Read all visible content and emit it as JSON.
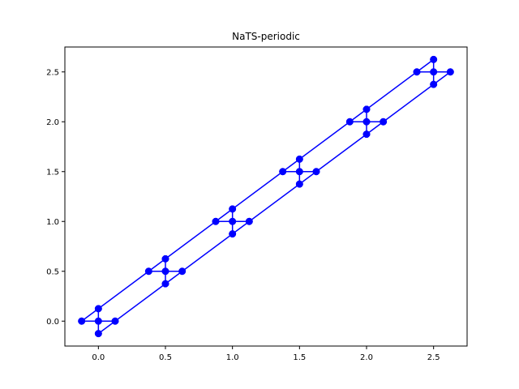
{
  "chart_data": {
    "type": "line",
    "title": "NaTS-periodic",
    "xlabel": "",
    "ylabel": "",
    "xlim": [
      -0.25,
      2.75
    ],
    "ylim": [
      -0.25,
      2.75
    ],
    "xticks": [
      0.0,
      0.5,
      1.0,
      1.5,
      2.0,
      2.5
    ],
    "yticks": [
      0.0,
      0.5,
      1.0,
      1.5,
      2.0,
      2.5
    ],
    "xtick_labels": [
      "0.0",
      "0.5",
      "1.0",
      "1.5",
      "2.0",
      "2.5"
    ],
    "ytick_labels": [
      "0.0",
      "0.5",
      "1.0",
      "1.5",
      "2.0",
      "2.5"
    ],
    "grid": false,
    "legend": "none",
    "color": "#0000ff",
    "series": [
      {
        "x": [
          -0.125,
          0.0,
          0.125
        ],
        "y": [
          0.0,
          0.0,
          0.0
        ]
      },
      {
        "x": [
          0.0,
          0.0,
          0.0
        ],
        "y": [
          -0.125,
          0.0,
          0.125
        ]
      },
      {
        "x": [
          0.375,
          0.5,
          0.625
        ],
        "y": [
          0.5,
          0.5,
          0.5
        ]
      },
      {
        "x": [
          0.5,
          0.5,
          0.5
        ],
        "y": [
          0.375,
          0.5,
          0.625
        ]
      },
      {
        "x": [
          0.875,
          1.0,
          1.125
        ],
        "y": [
          1.0,
          1.0,
          1.0
        ]
      },
      {
        "x": [
          1.0,
          1.0,
          1.0
        ],
        "y": [
          0.875,
          1.0,
          1.125
        ]
      },
      {
        "x": [
          1.375,
          1.5,
          1.625
        ],
        "y": [
          1.5,
          1.5,
          1.5
        ]
      },
      {
        "x": [
          1.5,
          1.5,
          1.5
        ],
        "y": [
          1.375,
          1.5,
          1.625
        ]
      },
      {
        "x": [
          1.875,
          2.0,
          2.125
        ],
        "y": [
          2.0,
          2.0,
          2.0
        ]
      },
      {
        "x": [
          2.0,
          2.0,
          2.0
        ],
        "y": [
          1.875,
          2.0,
          2.125
        ]
      },
      {
        "x": [
          2.375,
          2.5,
          2.625
        ],
        "y": [
          2.5,
          2.5,
          2.5
        ]
      },
      {
        "x": [
          2.5,
          2.5,
          2.5
        ],
        "y": [
          2.375,
          2.5,
          2.625
        ]
      },
      {
        "x": [
          -0.125,
          0.0,
          0.375,
          0.5,
          0.875,
          1.0,
          1.375,
          1.5,
          1.875,
          2.0,
          2.375,
          2.5
        ],
        "y": [
          0.0,
          0.125,
          0.5,
          0.625,
          1.0,
          1.125,
          1.5,
          1.625,
          2.0,
          2.125,
          2.5,
          2.625
        ]
      },
      {
        "x": [
          0.0,
          0.125,
          0.5,
          0.625,
          1.0,
          1.125,
          1.5,
          1.625,
          2.0,
          2.125,
          2.5,
          2.625
        ],
        "y": [
          -0.125,
          0.0,
          0.375,
          0.5,
          0.875,
          1.0,
          1.375,
          1.5,
          1.875,
          2.0,
          2.375,
          2.5
        ]
      }
    ]
  }
}
